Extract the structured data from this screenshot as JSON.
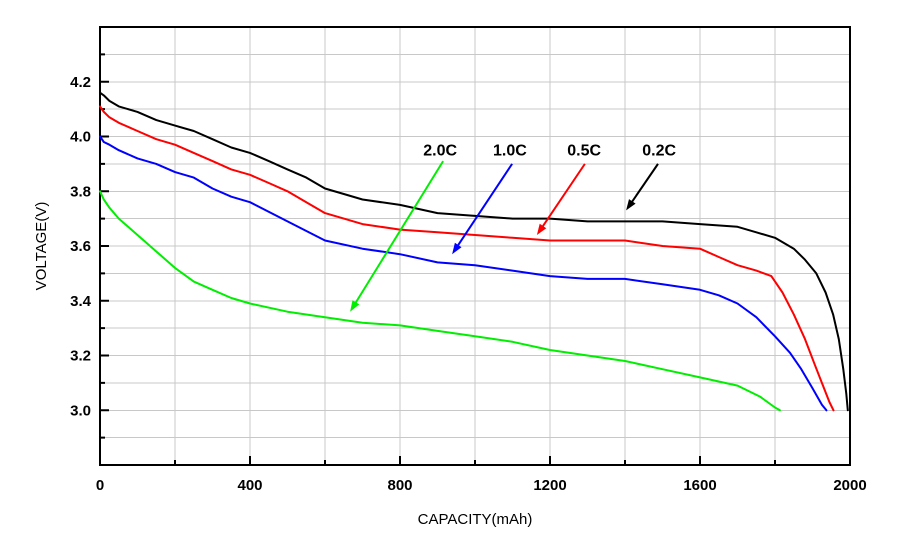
{
  "chart_data": {
    "type": "line",
    "title": "",
    "xlabel": "CAPACITY(mAh)",
    "ylabel": "VOLTAGE(V)",
    "xlim": [
      0,
      2000
    ],
    "ylim": [
      2.8,
      4.4
    ],
    "x_major_ticks": [
      0,
      400,
      800,
      1200,
      1600,
      2000
    ],
    "x_minor_step": 200,
    "y_major_ticks": [
      3.0,
      3.2,
      3.4,
      3.6,
      3.8,
      4.0,
      4.2
    ],
    "y_minor_step": 0.1,
    "grid": "every minor division",
    "grid_color": "#c8c8c8",
    "axis_color": "#000000",
    "background_color": "#ffffff",
    "legend_position": "none (arrowed text annotations on plot)",
    "series": [
      {
        "name": "0.2C",
        "color": "#000000",
        "points": [
          [
            0,
            4.16
          ],
          [
            10,
            4.15
          ],
          [
            25,
            4.13
          ],
          [
            50,
            4.11
          ],
          [
            100,
            4.09
          ],
          [
            150,
            4.06
          ],
          [
            200,
            4.04
          ],
          [
            250,
            4.02
          ],
          [
            300,
            3.99
          ],
          [
            350,
            3.96
          ],
          [
            400,
            3.94
          ],
          [
            450,
            3.91
          ],
          [
            500,
            3.88
          ],
          [
            550,
            3.85
          ],
          [
            600,
            3.81
          ],
          [
            650,
            3.79
          ],
          [
            700,
            3.77
          ],
          [
            800,
            3.75
          ],
          [
            900,
            3.72
          ],
          [
            1000,
            3.71
          ],
          [
            1100,
            3.7
          ],
          [
            1200,
            3.7
          ],
          [
            1300,
            3.69
          ],
          [
            1400,
            3.69
          ],
          [
            1500,
            3.69
          ],
          [
            1600,
            3.68
          ],
          [
            1700,
            3.67
          ],
          [
            1750,
            3.65
          ],
          [
            1800,
            3.63
          ],
          [
            1850,
            3.59
          ],
          [
            1880,
            3.55
          ],
          [
            1910,
            3.5
          ],
          [
            1935,
            3.43
          ],
          [
            1955,
            3.35
          ],
          [
            1970,
            3.26
          ],
          [
            1982,
            3.15
          ],
          [
            1990,
            3.06
          ],
          [
            1994,
            3.0
          ]
        ]
      },
      {
        "name": "0.5C",
        "color": "#ff0000",
        "points": [
          [
            0,
            4.11
          ],
          [
            10,
            4.09
          ],
          [
            25,
            4.07
          ],
          [
            50,
            4.05
          ],
          [
            100,
            4.02
          ],
          [
            150,
            3.99
          ],
          [
            200,
            3.97
          ],
          [
            250,
            3.94
          ],
          [
            300,
            3.91
          ],
          [
            350,
            3.88
          ],
          [
            400,
            3.86
          ],
          [
            450,
            3.83
          ],
          [
            500,
            3.8
          ],
          [
            550,
            3.76
          ],
          [
            600,
            3.72
          ],
          [
            650,
            3.7
          ],
          [
            700,
            3.68
          ],
          [
            800,
            3.66
          ],
          [
            900,
            3.65
          ],
          [
            1000,
            3.64
          ],
          [
            1100,
            3.63
          ],
          [
            1200,
            3.62
          ],
          [
            1300,
            3.62
          ],
          [
            1400,
            3.62
          ],
          [
            1500,
            3.6
          ],
          [
            1600,
            3.59
          ],
          [
            1650,
            3.56
          ],
          [
            1700,
            3.53
          ],
          [
            1750,
            3.51
          ],
          [
            1790,
            3.49
          ],
          [
            1820,
            3.43
          ],
          [
            1850,
            3.35
          ],
          [
            1880,
            3.26
          ],
          [
            1905,
            3.17
          ],
          [
            1925,
            3.1
          ],
          [
            1945,
            3.03
          ],
          [
            1956,
            3.0
          ]
        ]
      },
      {
        "name": "1.0C",
        "color": "#0000ff",
        "points": [
          [
            0,
            4.0
          ],
          [
            10,
            3.98
          ],
          [
            25,
            3.97
          ],
          [
            50,
            3.95
          ],
          [
            100,
            3.92
          ],
          [
            150,
            3.9
          ],
          [
            200,
            3.87
          ],
          [
            250,
            3.85
          ],
          [
            300,
            3.81
          ],
          [
            350,
            3.78
          ],
          [
            400,
            3.76
          ],
          [
            500,
            3.69
          ],
          [
            600,
            3.62
          ],
          [
            700,
            3.59
          ],
          [
            800,
            3.57
          ],
          [
            900,
            3.54
          ],
          [
            1000,
            3.53
          ],
          [
            1100,
            3.51
          ],
          [
            1200,
            3.49
          ],
          [
            1300,
            3.48
          ],
          [
            1400,
            3.48
          ],
          [
            1500,
            3.46
          ],
          [
            1600,
            3.44
          ],
          [
            1650,
            3.42
          ],
          [
            1700,
            3.39
          ],
          [
            1750,
            3.34
          ],
          [
            1800,
            3.27
          ],
          [
            1840,
            3.21
          ],
          [
            1870,
            3.15
          ],
          [
            1900,
            3.08
          ],
          [
            1925,
            3.02
          ],
          [
            1937,
            3.0
          ]
        ]
      },
      {
        "name": "2.0C",
        "color": "#00ee00",
        "points": [
          [
            0,
            3.8
          ],
          [
            10,
            3.77
          ],
          [
            25,
            3.74
          ],
          [
            50,
            3.7
          ],
          [
            75,
            3.67
          ],
          [
            100,
            3.64
          ],
          [
            150,
            3.58
          ],
          [
            200,
            3.52
          ],
          [
            250,
            3.47
          ],
          [
            300,
            3.44
          ],
          [
            350,
            3.41
          ],
          [
            400,
            3.39
          ],
          [
            500,
            3.36
          ],
          [
            600,
            3.34
          ],
          [
            700,
            3.32
          ],
          [
            800,
            3.31
          ],
          [
            900,
            3.29
          ],
          [
            1000,
            3.27
          ],
          [
            1100,
            3.25
          ],
          [
            1200,
            3.22
          ],
          [
            1300,
            3.2
          ],
          [
            1400,
            3.18
          ],
          [
            1500,
            3.15
          ],
          [
            1600,
            3.12
          ],
          [
            1700,
            3.09
          ],
          [
            1760,
            3.05
          ],
          [
            1800,
            3.01
          ],
          [
            1813,
            3.0
          ]
        ]
      }
    ],
    "annotations": [
      {
        "label": "2.0C",
        "label_color": "#000000",
        "arrow_color": "#00ee00",
        "label_at": [
          907,
          3.95
        ],
        "arrow_from": [
          915,
          3.91
        ],
        "arrow_to": [
          667,
          3.36
        ]
      },
      {
        "label": "1.0C",
        "label_color": "#000000",
        "arrow_color": "#0000ff",
        "label_at": [
          1093,
          3.95
        ],
        "arrow_from": [
          1099,
          3.9
        ],
        "arrow_to": [
          939,
          3.57
        ]
      },
      {
        "label": "0.5C",
        "label_color": "#000000",
        "arrow_color": "#ff0000",
        "label_at": [
          1291,
          3.95
        ],
        "arrow_from": [
          1293,
          3.9
        ],
        "arrow_to": [
          1165,
          3.64
        ]
      },
      {
        "label": "0.2C",
        "label_color": "#000000",
        "arrow_color": "#000000",
        "label_at": [
          1491,
          3.95
        ],
        "arrow_from": [
          1488,
          3.9
        ],
        "arrow_to": [
          1403,
          3.73
        ]
      }
    ]
  }
}
